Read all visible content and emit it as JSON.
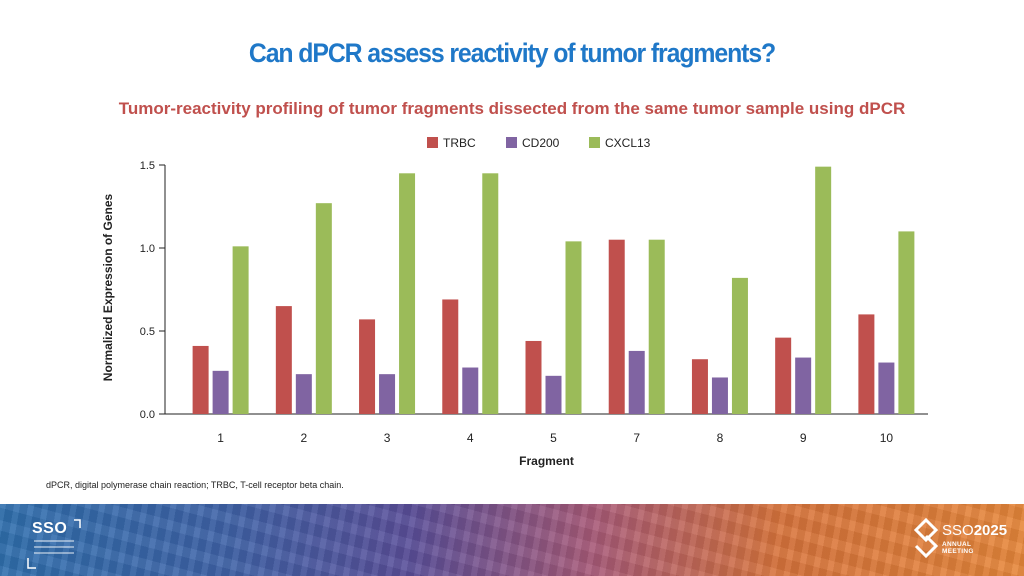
{
  "header": {
    "title": "Can dPCR assess reactivity of tumor fragments?",
    "subtitle": "Tumor-reactivity profiling of tumor fragments dissected from the same tumor sample using dPCR"
  },
  "colors": {
    "title": "#1f78c8",
    "subtitle": "#c0504d",
    "TRBC": "#c0504d",
    "CD200": "#8064a2",
    "CXCL13": "#9bbb59"
  },
  "chart_data": {
    "type": "bar",
    "categories": [
      "1",
      "2",
      "3",
      "4",
      "5",
      "7",
      "8",
      "9",
      "10"
    ],
    "series": [
      {
        "name": "TRBC",
        "values": [
          0.41,
          0.65,
          0.57,
          0.69,
          0.44,
          1.05,
          0.33,
          0.46,
          0.6
        ]
      },
      {
        "name": "CD200",
        "values": [
          0.26,
          0.24,
          0.24,
          0.28,
          0.23,
          0.38,
          0.22,
          0.34,
          0.31
        ]
      },
      {
        "name": "CXCL13",
        "values": [
          1.01,
          1.27,
          1.45,
          1.45,
          1.04,
          1.05,
          0.82,
          1.49,
          1.1
        ]
      }
    ],
    "xlabel": "Fragment",
    "ylabel": "Normalized Expression of Genes",
    "ylim": [
      0,
      1.5
    ],
    "yticks": [
      "0.0",
      "0.5",
      "1.0",
      "1.5"
    ],
    "legend_position": "top",
    "grid": false
  },
  "footnote": "dPCR, digital polymerase chain reaction; TRBC, T-cell receptor beta chain.",
  "branding": {
    "left_logo": "SSO",
    "right_logo_prefix": "SSO",
    "right_logo_year": "2025",
    "right_logo_tagline": "ANNUAL MEETING"
  }
}
